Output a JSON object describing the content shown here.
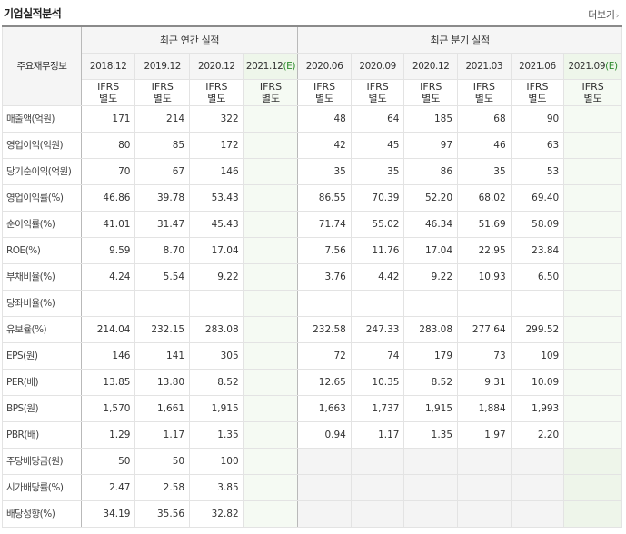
{
  "header": {
    "title": "기업실적분석",
    "more_label": "더보기",
    "more_icon": "chevron-right-icon"
  },
  "table": {
    "row_header_label": "주요재무정보",
    "groups": {
      "annual": "최근 연간 실적",
      "quarterly": "최근 분기 실적"
    },
    "annual_periods": [
      "2018.12",
      "2019.12",
      "2020.12"
    ],
    "annual_estimate": {
      "period": "2021.12",
      "marker": "(E)"
    },
    "quarter_periods": [
      "2020.06",
      "2020.09",
      "2020.12",
      "2021.03",
      "2021.06"
    ],
    "quarter_estimate": {
      "period": "2021.09",
      "marker": "(E)"
    },
    "basis": {
      "line1": "IFRS",
      "line2": "별도"
    },
    "rows": [
      {
        "label": "매출액(억원)",
        "annual": [
          "171",
          "214",
          "322",
          ""
        ],
        "quarter": [
          "48",
          "64",
          "185",
          "68",
          "90",
          ""
        ]
      },
      {
        "label": "영업이익(억원)",
        "annual": [
          "80",
          "85",
          "172",
          ""
        ],
        "quarter": [
          "42",
          "45",
          "97",
          "46",
          "63",
          ""
        ]
      },
      {
        "label": "당기순이익(억원)",
        "annual": [
          "70",
          "67",
          "146",
          ""
        ],
        "quarter": [
          "35",
          "35",
          "86",
          "35",
          "53",
          ""
        ]
      },
      {
        "label": "영업이익률(%)",
        "annual": [
          "46.86",
          "39.78",
          "53.43",
          ""
        ],
        "quarter": [
          "86.55",
          "70.39",
          "52.20",
          "68.02",
          "69.40",
          ""
        ]
      },
      {
        "label": "순이익률(%)",
        "annual": [
          "41.01",
          "31.47",
          "45.43",
          ""
        ],
        "quarter": [
          "71.74",
          "55.02",
          "46.34",
          "51.69",
          "58.09",
          ""
        ]
      },
      {
        "label": "ROE(%)",
        "annual": [
          "9.59",
          "8.70",
          "17.04",
          ""
        ],
        "quarter": [
          "7.56",
          "11.76",
          "17.04",
          "22.95",
          "23.84",
          ""
        ]
      },
      {
        "label": "부채비율(%)",
        "annual": [
          "4.24",
          "5.54",
          "9.22",
          ""
        ],
        "quarter": [
          "3.76",
          "4.42",
          "9.22",
          "10.93",
          "6.50",
          ""
        ]
      },
      {
        "label": "당좌비율(%)",
        "annual": [
          "",
          "",
          "",
          ""
        ],
        "quarter": [
          "",
          "",
          "",
          "",
          "",
          ""
        ]
      },
      {
        "label": "유보율(%)",
        "annual": [
          "214.04",
          "232.15",
          "283.08",
          ""
        ],
        "quarter": [
          "232.58",
          "247.33",
          "283.08",
          "277.64",
          "299.52",
          ""
        ]
      },
      {
        "label": "EPS(원)",
        "annual": [
          "146",
          "141",
          "305",
          ""
        ],
        "quarter": [
          "72",
          "74",
          "179",
          "73",
          "109",
          ""
        ]
      },
      {
        "label": "PER(배)",
        "annual": [
          "13.85",
          "13.80",
          "8.52",
          ""
        ],
        "quarter": [
          "12.65",
          "10.35",
          "8.52",
          "9.31",
          "10.09",
          ""
        ]
      },
      {
        "label": "BPS(원)",
        "annual": [
          "1,570",
          "1,661",
          "1,915",
          ""
        ],
        "quarter": [
          "1,663",
          "1,737",
          "1,915",
          "1,884",
          "1,993",
          ""
        ]
      },
      {
        "label": "PBR(배)",
        "annual": [
          "1.29",
          "1.17",
          "1.35",
          ""
        ],
        "quarter": [
          "0.94",
          "1.17",
          "1.35",
          "1.97",
          "2.20",
          ""
        ]
      },
      {
        "label": "주당배당금(원)",
        "annual": [
          "50",
          "50",
          "100",
          ""
        ],
        "quarter": [
          "",
          "",
          "",
          "",
          "",
          ""
        ],
        "quarter_blank": true
      },
      {
        "label": "시가배당률(%)",
        "annual": [
          "2.47",
          "2.58",
          "3.85",
          ""
        ],
        "quarter": [
          "",
          "",
          "",
          "",
          "",
          ""
        ],
        "quarter_blank": true
      },
      {
        "label": "배당성향(%)",
        "annual": [
          "34.19",
          "35.56",
          "32.82",
          ""
        ],
        "quarter": [
          "",
          "",
          "",
          "",
          "",
          ""
        ],
        "quarter_blank": true
      }
    ]
  },
  "colors": {
    "ifrs_text": "#e4762a",
    "estimate_marker": "#2e8b2e",
    "estimate_column_bg": "#f5faf3",
    "header_bg": "#f5f5f5"
  }
}
